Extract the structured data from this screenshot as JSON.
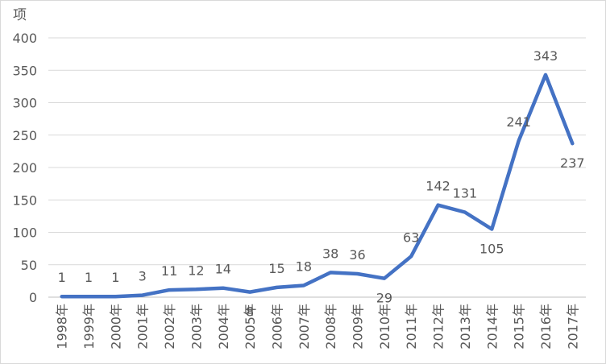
{
  "chart_data": {
    "type": "line",
    "y_unit": "项",
    "categories": [
      "1998年",
      "1999年",
      "2000年",
      "2001年",
      "2002年",
      "2003年",
      "2004年",
      "2005年",
      "2006年",
      "2007年",
      "2008年",
      "2009年",
      "2010年",
      "2011年",
      "2012年",
      "2013年",
      "2014年",
      "2015年",
      "2016年",
      "2017年"
    ],
    "values": [
      1,
      1,
      1,
      3,
      11,
      12,
      14,
      8,
      15,
      18,
      38,
      36,
      29,
      63,
      142,
      131,
      105,
      241,
      343,
      237
    ],
    "ylim": [
      0,
      400
    ],
    "yticks": [
      0,
      50,
      100,
      150,
      200,
      250,
      300,
      350,
      400
    ],
    "grid": true,
    "legend": "none",
    "series_color": "#4472c4"
  }
}
